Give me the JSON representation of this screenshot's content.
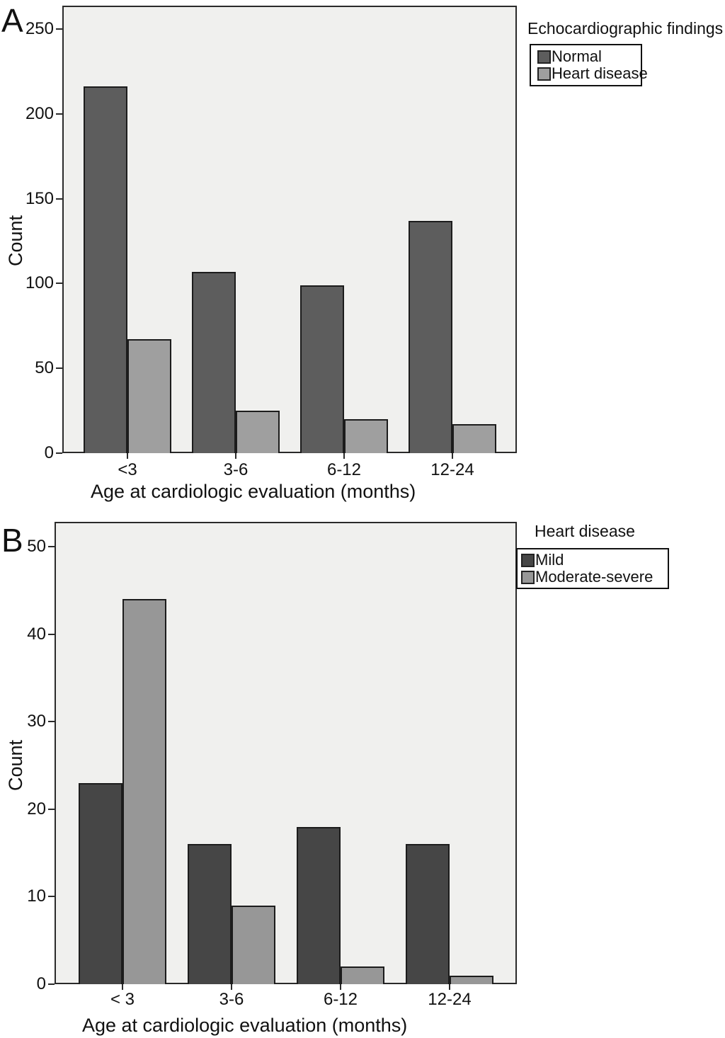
{
  "figure_type": "two-panel grouped bar chart",
  "chart_data": [
    {
      "type": "bar",
      "panel_label": "A",
      "legend_title": "Echocardiographic findings",
      "legend_position": "outside top-right",
      "categories": [
        "<3",
        "3-6",
        "6-12",
        "12-24"
      ],
      "series": [
        {
          "name": "Normal",
          "color": "#5d5d5d",
          "values": [
            216,
            107,
            99,
            137
          ]
        },
        {
          "name": "Heart disease",
          "color": "#9f9f9f",
          "values": [
            67,
            25,
            20,
            17
          ]
        }
      ],
      "xlabel": "Age at cardiologic evaluation (months)",
      "ylabel": "Count",
      "ylim": [
        0,
        263
      ],
      "yticks": [
        0,
        50,
        100,
        150,
        200,
        250
      ],
      "grid": false,
      "plot_bg": "#f0f0ee",
      "bar_border_color": "#1c1c1c"
    },
    {
      "type": "bar",
      "panel_label": "B",
      "legend_title": "Heart disease",
      "legend_position": "outside top-right",
      "categories": [
        "< 3",
        "3-6",
        "6-12",
        "12-24"
      ],
      "series": [
        {
          "name": "Mild",
          "color": "#464646",
          "values": [
            23,
            16,
            18,
            16
          ]
        },
        {
          "name": "Moderate-severe",
          "color": "#979797",
          "values": [
            44,
            9,
            2,
            1
          ]
        }
      ],
      "xlabel": "Age at cardiologic evaluation (months)",
      "ylabel": "Count",
      "ylim": [
        0,
        52.8
      ],
      "yticks": [
        0,
        10,
        20,
        30,
        40,
        50
      ],
      "grid": false,
      "plot_bg": "#f0f0ee",
      "bar_border_color": "#1c1c1c"
    }
  ]
}
